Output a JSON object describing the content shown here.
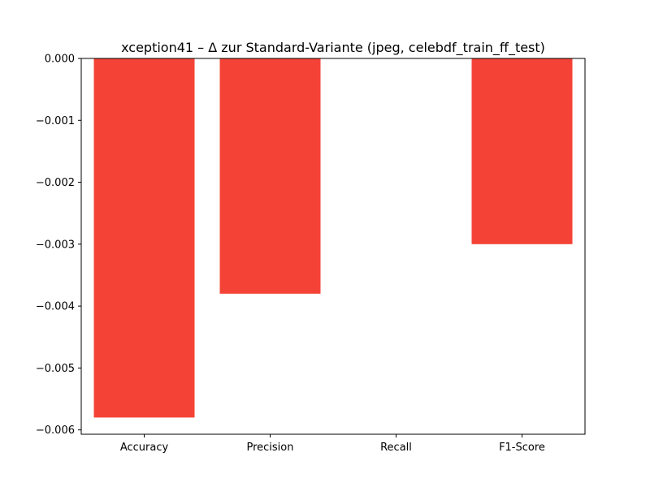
{
  "chart_data": {
    "type": "bar",
    "title": "xception41 – Δ zur Standard-Variante (jpeg, celebdf_train_ff_test)",
    "xlabel": "",
    "ylabel": "",
    "categories": [
      "Accuracy",
      "Precision",
      "Recall",
      "F1-Score"
    ],
    "values": [
      -0.0058,
      -0.0038,
      0.0,
      -0.003
    ],
    "ylim": [
      -0.00607,
      0.0
    ],
    "yticks": [
      0.0,
      -0.001,
      -0.002,
      -0.003,
      -0.004,
      -0.005,
      -0.006
    ],
    "ytick_labels": [
      "0.000",
      "−0.001",
      "−0.002",
      "−0.003",
      "−0.004",
      "−0.005",
      "−0.006"
    ],
    "bar_color": "#f44336",
    "grid": false,
    "legend": "none"
  }
}
